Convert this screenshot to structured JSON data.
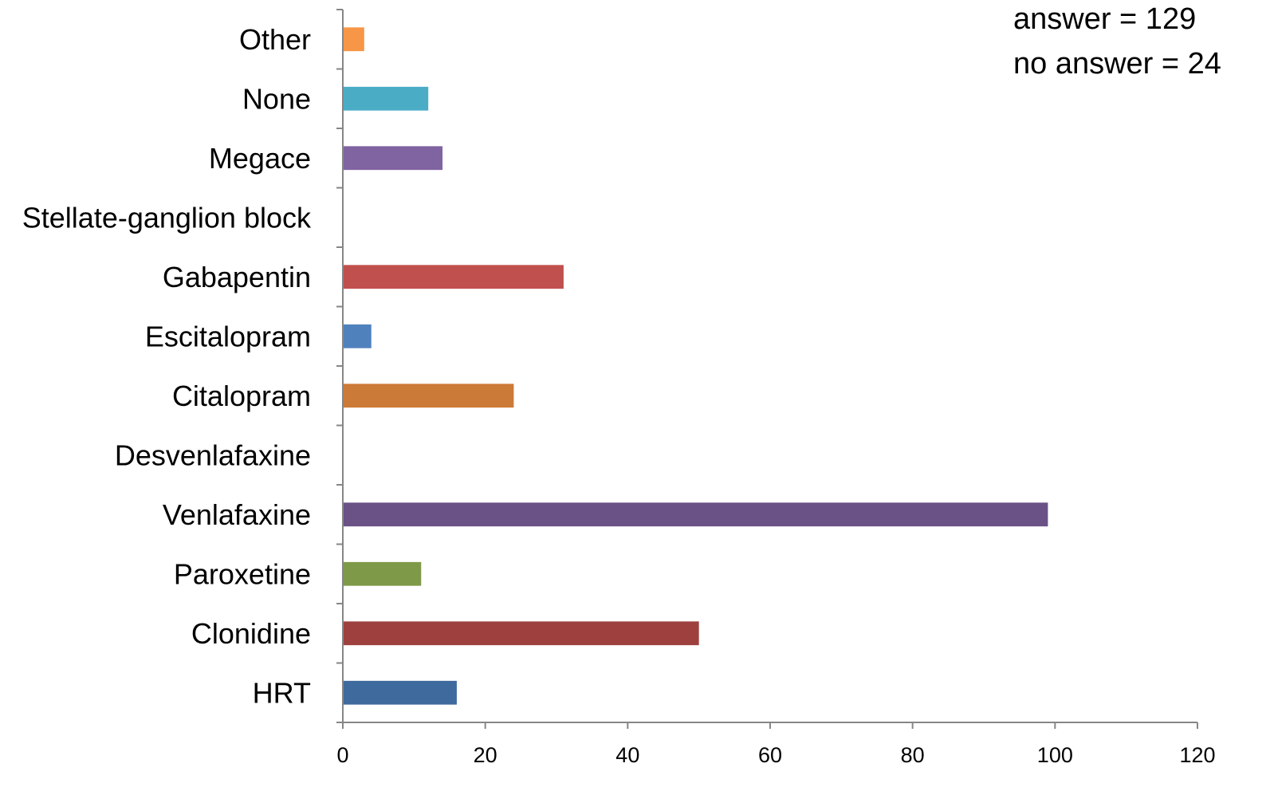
{
  "chart_data": {
    "type": "bar",
    "orientation": "horizontal",
    "title": "",
    "xlabel": "",
    "ylabel": "",
    "categories": [
      "HRT",
      "Clonidine",
      "Paroxetine",
      "Venlafaxine",
      "Desvenlafaxine",
      "Citalopram",
      "Escitalopram",
      "Gabapentin",
      "Stellate-ganglion block",
      "Megace",
      "None",
      "Other"
    ],
    "values": [
      16,
      50,
      11,
      99,
      0,
      24,
      4,
      31,
      0,
      14,
      12,
      3
    ],
    "colors": [
      "#3e6a9e",
      "#9e413e",
      "#7e9a48",
      "#6a5186",
      "#3d9ab0",
      "#cc7a37",
      "#4f81bd",
      "#c0504d",
      "#9bbb59",
      "#8064a2",
      "#4bacc6",
      "#f79646"
    ],
    "xlim": [
      0,
      120
    ],
    "xticks": [
      0,
      20,
      40,
      60,
      80,
      100,
      120
    ],
    "grid": false,
    "legend": "none",
    "annotations": [
      "answer = 129",
      "no answer = 24"
    ]
  }
}
